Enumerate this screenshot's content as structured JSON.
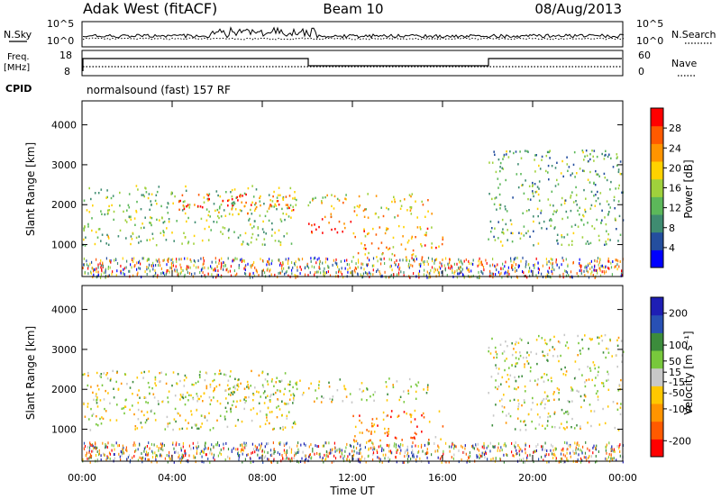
{
  "header": {
    "station": "Adak West (fitACF)",
    "beam": "Beam 10",
    "date": "08/Aug/2013"
  },
  "nsky_panel": {
    "left_label": "N.Sky",
    "right_label": "N.Search",
    "left_ticks": [
      "10^5",
      "10^0"
    ],
    "right_ticks": [
      "10^5",
      "10^0"
    ]
  },
  "freq_panel": {
    "left_label": "Freq.",
    "left_unit": "[MHz]",
    "right_label": "Nave",
    "left_ticks": [
      "18",
      "8"
    ],
    "right_ticks": [
      "60",
      "0"
    ]
  },
  "cpid": {
    "label": "CPID",
    "value": "normalsound (fast) 157 RF"
  },
  "colors": {
    "power_scale": [
      "#0000ff",
      "#244e9e",
      "#3f8c71",
      "#5cb85a",
      "#9fd13c",
      "#ffd200",
      "#ff9400",
      "#ff5a00",
      "#ff0000"
    ],
    "velocity_scale": [
      "#ff0000",
      "#ff5a00",
      "#ff9400",
      "#ffc800",
      "#c8c8c8",
      "#78c83c",
      "#3c8c3c",
      "#2850b4",
      "#1e1eb4"
    ]
  },
  "chart_data": [
    {
      "type": "heatmap",
      "name": "power",
      "ylabel": "Slant Range [km]",
      "xlabel": "",
      "x_ticks": [
        "00:00",
        "04:00",
        "08:00",
        "12:00",
        "16:00",
        "20:00",
        "00:00"
      ],
      "y_ticks": [
        1000,
        2000,
        3000,
        4000
      ],
      "ylim": [
        200,
        4600
      ],
      "xlim_hours": [
        0,
        24
      ],
      "colorbar": {
        "label": "Power [dB]",
        "ticks": [
          4,
          8,
          12,
          16,
          20,
          24,
          28
        ],
        "range": [
          0,
          32
        ]
      },
      "features": [
        {
          "t0": 0.0,
          "t1": 9.5,
          "r0": 1000,
          "r1": 2500,
          "level": 0.45
        },
        {
          "t0": 4.0,
          "t1": 9.5,
          "r0": 1800,
          "r1": 2300,
          "level": 0.85
        },
        {
          "t0": 10.0,
          "t1": 12.0,
          "r0": 1300,
          "r1": 1700,
          "level": 0.95
        },
        {
          "t0": 10.0,
          "t1": 15.5,
          "r0": 1700,
          "r1": 2300,
          "level": 0.6
        },
        {
          "t0": 12.0,
          "t1": 16.0,
          "r0": 700,
          "r1": 1500,
          "level": 0.7
        },
        {
          "t0": 18.0,
          "t1": 24.0,
          "r0": 1000,
          "r1": 2200,
          "level": 0.4
        },
        {
          "t0": 18.0,
          "t1": 24.0,
          "r0": 2200,
          "r1": 3400,
          "level": 0.35
        }
      ]
    },
    {
      "type": "heatmap",
      "name": "velocity",
      "ylabel": "Slant Range [km]",
      "xlabel": "Time UT",
      "x_ticks": [
        "00:00",
        "04:00",
        "08:00",
        "12:00",
        "16:00",
        "20:00",
        "00:00"
      ],
      "y_ticks": [
        1000,
        2000,
        3000,
        4000
      ],
      "ylim": [
        200,
        4600
      ],
      "xlim_hours": [
        0,
        24
      ],
      "colorbar": {
        "label": "Velocity [m s⁻¹]",
        "ticks": [
          -200,
          -100,
          -50,
          -15,
          15,
          50,
          100,
          200
        ],
        "range": [
          -250,
          250
        ]
      },
      "features": [
        {
          "t0": 0.0,
          "t1": 9.5,
          "r0": 1000,
          "r1": 2500,
          "level": 0.5
        },
        {
          "t0": 4.0,
          "t1": 15.5,
          "r0": 1700,
          "r1": 2300,
          "level": 0.5
        },
        {
          "t0": 12.0,
          "t1": 16.0,
          "r0": 700,
          "r1": 1500,
          "level": 0.25
        },
        {
          "t0": 18.0,
          "t1": 24.0,
          "r0": 1000,
          "r1": 3400,
          "level": 0.5
        }
      ]
    }
  ]
}
